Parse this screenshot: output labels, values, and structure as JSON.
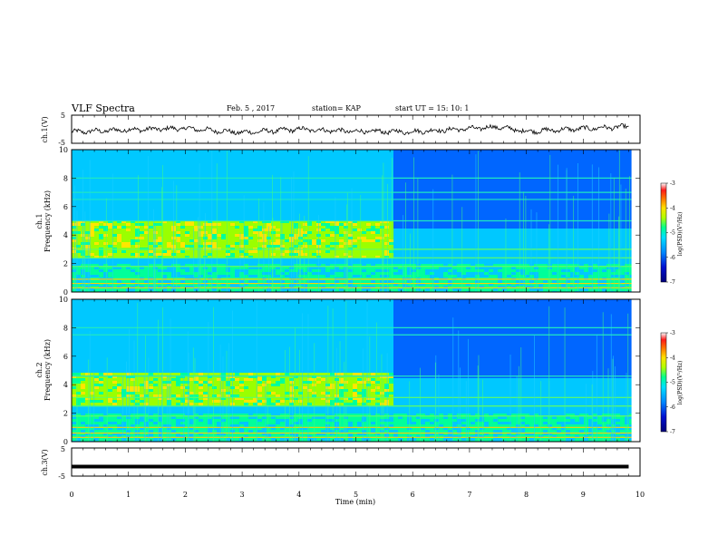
{
  "header": {
    "title": "VLF Spectra",
    "date": "Feb. 5  , 2017",
    "station": "station= KAP",
    "start_ut": "start  UT  =   15: 10: 1"
  },
  "chart_data": [
    {
      "type": "line",
      "ylabel": "ch.1(V)",
      "ylim": [
        -5,
        5
      ],
      "yticks": [
        "5",
        "-5"
      ],
      "xlim": [
        0,
        10
      ],
      "series_description": "noisy wave around -0.5 V",
      "approx_points": [
        [
          0,
          -1.0
        ],
        [
          1,
          -0.2
        ],
        [
          2,
          0.3
        ],
        [
          3,
          -1.2
        ],
        [
          4,
          0.0
        ],
        [
          5,
          -0.8
        ],
        [
          6,
          -0.9
        ],
        [
          7,
          0.2
        ],
        [
          7.5,
          0.8
        ],
        [
          8,
          -0.8
        ],
        [
          9,
          0.2
        ],
        [
          9.8,
          0.9
        ]
      ]
    },
    {
      "type": "heatmap",
      "ylabel": "ch.1 Frequency (kHz)",
      "ylim": [
        0,
        10
      ],
      "yticks": [
        "0",
        "2",
        "4",
        "6",
        "8",
        "10"
      ],
      "xlim": [
        0,
        10
      ],
      "colorbar": {
        "label": "log(PSD)(V²/Hz)",
        "range": [
          -7,
          -3
        ],
        "ticks": [
          "-3",
          "-4",
          "-5",
          "-6",
          "-7"
        ]
      },
      "features": {
        "enhanced_band_khz": [
          2.5,
          5.2
        ],
        "enhanced_until_min": 5.6,
        "persistent_lines_khz": [
          0.3,
          0.6,
          0.9,
          1.8,
          2.4,
          3.0,
          5.0,
          6.5,
          7.0,
          8.0
        ]
      }
    },
    {
      "type": "heatmap",
      "ylabel": "ch.2 Frequency (kHz)",
      "ylim": [
        0,
        10
      ],
      "yticks": [
        "0",
        "2",
        "4",
        "6",
        "8",
        "10"
      ],
      "xlim": [
        0,
        10
      ],
      "colorbar": {
        "label": "log(PSD)(V²/Hz)",
        "range": [
          -7,
          -3
        ],
        "ticks": [
          "-3",
          "-4",
          "-5",
          "-6",
          "-7"
        ]
      },
      "features": {
        "enhanced_band_khz": [
          2.6,
          5.0
        ],
        "enhanced_until_min": 5.6,
        "persistent_lines_khz": [
          0.3,
          0.6,
          1.0,
          1.8,
          2.5,
          3.1,
          4.6,
          7.5,
          8.0
        ]
      }
    },
    {
      "type": "line",
      "ylabel": "ch.3(V)",
      "ylim": [
        -5,
        5
      ],
      "yticks": [
        "5",
        "-5"
      ],
      "xlim": [
        0,
        10
      ],
      "series_description": "flat line at about -1.6 V",
      "approx_points": [
        [
          0,
          -1.6
        ],
        [
          9.8,
          -1.6
        ]
      ]
    }
  ],
  "xaxis": {
    "label": "Time  (min)",
    "ticks": [
      "0",
      "1",
      "2",
      "3",
      "4",
      "5",
      "6",
      "7",
      "8",
      "9",
      "10"
    ],
    "range": [
      0,
      10
    ]
  },
  "colors": {
    "colormap": [
      "#00007a",
      "#0010d0",
      "#0066ff",
      "#00c8ff",
      "#00ff9a",
      "#9aff00",
      "#ffe600",
      "#ff8800",
      "#ff1a1a",
      "#ffffff"
    ]
  }
}
